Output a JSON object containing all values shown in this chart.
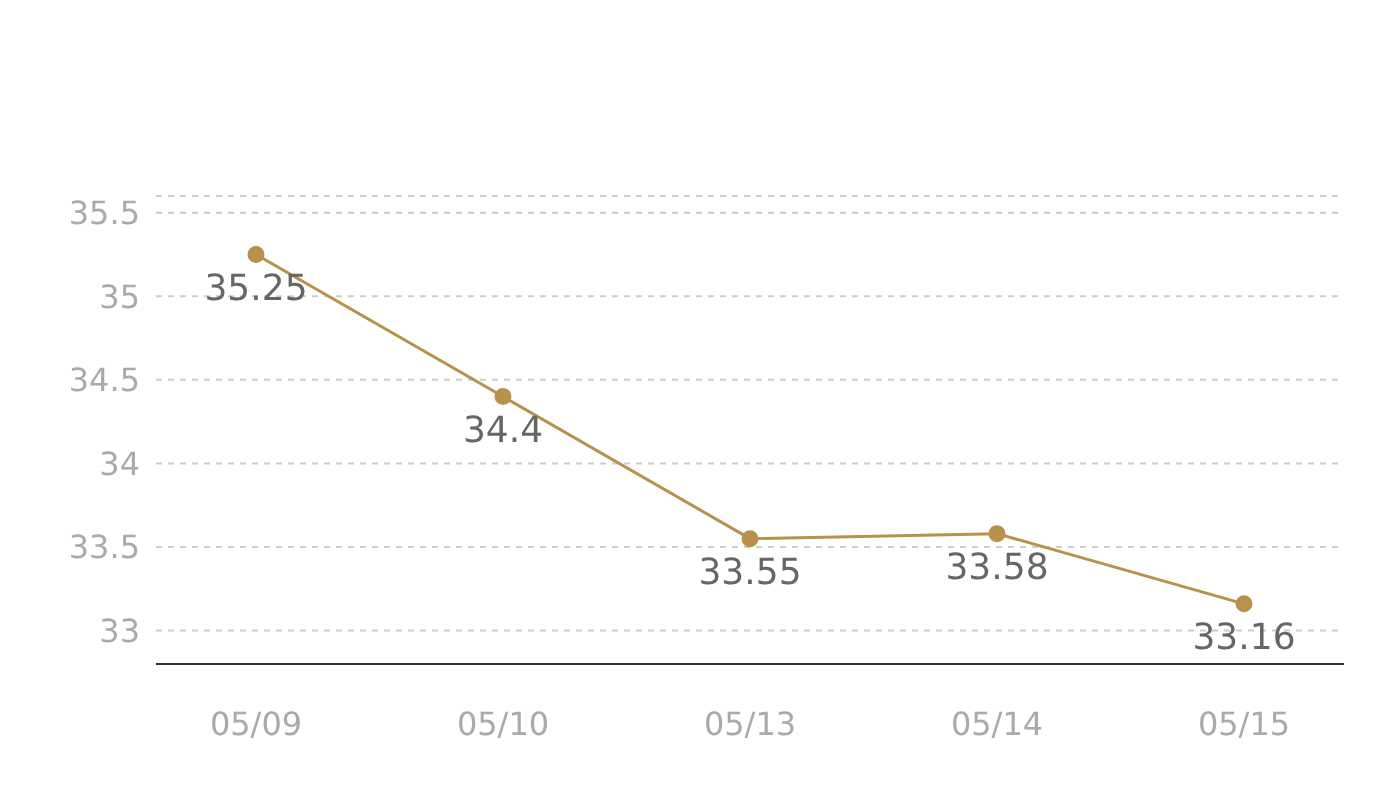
{
  "chart_data": {
    "type": "line",
    "categories": [
      "05/09",
      "05/10",
      "05/13",
      "05/14",
      "05/15"
    ],
    "series": [
      {
        "color": "#b8914c",
        "values": [
          35.25,
          34.4,
          33.55,
          33.58,
          33.16
        ]
      }
    ],
    "ylim": [
      32.8,
      35.6
    ],
    "yticks": [
      33,
      33.5,
      34,
      34.5,
      35,
      35.5
    ],
    "grid": "y",
    "marker": "circle",
    "data_labels": true,
    "legend": false
  }
}
